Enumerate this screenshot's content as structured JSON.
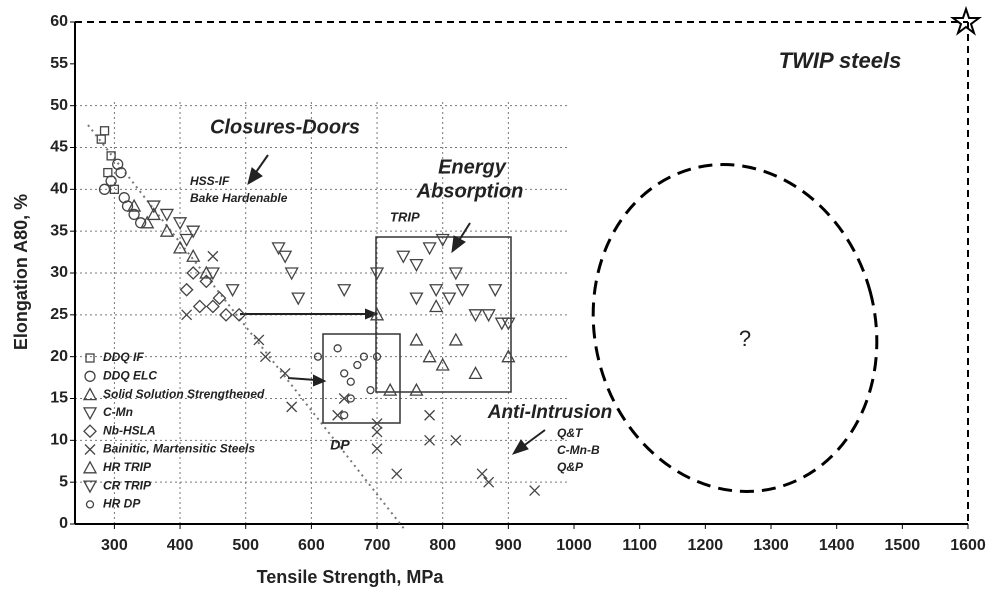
{
  "chart_data": {
    "type": "scatter",
    "x_label": "Tensile Strength, MPa",
    "y_label": "Elongation A80, %",
    "xlim": [
      240,
      1600
    ],
    "ylim": [
      0,
      60
    ],
    "xticks": [
      300,
      400,
      500,
      600,
      700,
      800,
      900,
      1000,
      1100,
      1200,
      1300,
      1400,
      1500,
      1600
    ],
    "yticks": [
      0,
      5,
      10,
      15,
      20,
      25,
      30,
      35,
      40,
      45,
      50,
      55,
      60
    ],
    "grid": true,
    "legend": "lower-left",
    "annotations": {
      "twip": "TWIP steels",
      "closures": "Closures-Doors",
      "hss_if": "HSS-IF",
      "bake": "Bake Hardenable",
      "energy": "Energy",
      "absorption": "Absorption",
      "trip": "TRIP",
      "anti": "Anti-Intrusion",
      "qt": "Q&T",
      "cmnb": "C-Mn-B",
      "qp": "Q&P",
      "dp": "DP",
      "unknown": "?"
    },
    "series": [
      {
        "name": "DDQ IF",
        "marker": "square",
        "color": "#444",
        "x": [
          280,
          285,
          290,
          295,
          300
        ],
        "y": [
          46,
          47,
          42,
          44,
          40
        ]
      },
      {
        "name": "DDQ ELC",
        "marker": "circle",
        "color": "#444",
        "x": [
          285,
          295,
          305,
          310,
          320,
          330,
          340,
          315
        ],
        "y": [
          40,
          41,
          43,
          42,
          38,
          37,
          36,
          39
        ]
      },
      {
        "name": "Solid Solution Strengthened",
        "marker": "triangle",
        "color": "#444",
        "x": [
          330,
          350,
          380,
          400,
          420,
          440,
          360
        ],
        "y": [
          38,
          36,
          35,
          33,
          32,
          30,
          37
        ]
      },
      {
        "name": "C-Mn",
        "marker": "triangle-down",
        "color": "#444",
        "x": [
          360,
          380,
          400,
          410,
          420,
          450,
          480,
          560,
          570,
          550,
          580,
          650
        ],
        "y": [
          38,
          37,
          36,
          34,
          35,
          30,
          28,
          32,
          30,
          33,
          27,
          28
        ]
      },
      {
        "name": "Nb-HSLA",
        "marker": "diamond",
        "color": "#444",
        "x": [
          410,
          430,
          450,
          460,
          470,
          490,
          440,
          420
        ],
        "y": [
          28,
          26,
          26,
          27,
          25,
          25,
          29,
          30
        ]
      },
      {
        "name": "Bainitic, Martensitic Steels",
        "marker": "x",
        "color": "#444",
        "x": [
          410,
          450,
          520,
          530,
          560,
          570,
          640,
          650,
          700,
          700,
          730,
          780,
          780,
          820,
          870,
          940,
          860,
          700
        ],
        "y": [
          25,
          32,
          22,
          20,
          18,
          14,
          13,
          15,
          12,
          9,
          6,
          13,
          10,
          10,
          5,
          4,
          6,
          11
        ]
      },
      {
        "name": "HR TRIP",
        "marker": "triangle",
        "color": "#444",
        "x": [
          700,
          720,
          760,
          780,
          790,
          800,
          820,
          850,
          900,
          760
        ],
        "y": [
          25,
          16,
          22,
          20,
          26,
          19,
          22,
          18,
          20,
          16
        ]
      },
      {
        "name": "CR TRIP",
        "marker": "triangle-down",
        "color": "#444",
        "x": [
          700,
          740,
          760,
          780,
          790,
          800,
          810,
          830,
          850,
          870,
          890,
          900,
          880,
          760,
          820
        ],
        "y": [
          30,
          32,
          31,
          33,
          28,
          34,
          27,
          28,
          25,
          25,
          24,
          24,
          28,
          27,
          30
        ]
      },
      {
        "name": "HR DP",
        "marker": "small-circle",
        "color": "#444",
        "x": [
          610,
          640,
          650,
          660,
          670,
          680,
          690,
          660,
          650,
          700
        ],
        "y": [
          20,
          21,
          18,
          17,
          19,
          20,
          16,
          15,
          13,
          20
        ]
      }
    ]
  }
}
